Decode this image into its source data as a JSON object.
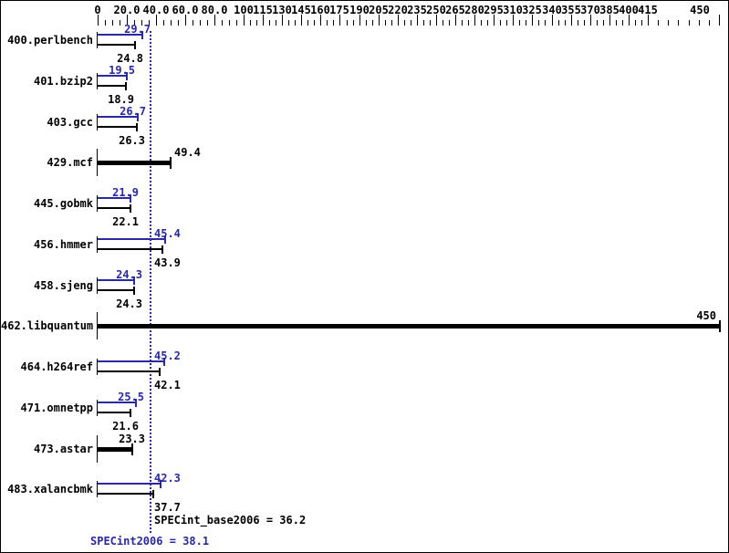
{
  "chart_data": {
    "type": "bar",
    "orientation": "horizontal",
    "title": "",
    "xlabel": "",
    "ylabel": "",
    "legend": "none",
    "grid": false,
    "colors": {
      "peak": "#2929a3",
      "base": "#000000",
      "reference_line": "#2929a3"
    },
    "axis": {
      "position": "top",
      "xlim": [
        0,
        450
      ],
      "minor_tick_step": 5,
      "major_ticks": [
        {
          "v": 0,
          "label": "0"
        },
        {
          "v": 20,
          "label": "20.0"
        },
        {
          "v": 40,
          "label": "40.0"
        },
        {
          "v": 60,
          "label": "60.0"
        },
        {
          "v": 80,
          "label": "80.0"
        },
        {
          "v": 100,
          "label": "100"
        },
        {
          "v": 115,
          "label": "115"
        },
        {
          "v": 130,
          "label": "130"
        },
        {
          "v": 145,
          "label": "145"
        },
        {
          "v": 160,
          "label": "160"
        },
        {
          "v": 175,
          "label": "175"
        },
        {
          "v": 190,
          "label": "190"
        },
        {
          "v": 205,
          "label": "205"
        },
        {
          "v": 220,
          "label": "220"
        },
        {
          "v": 235,
          "label": "235"
        },
        {
          "v": 250,
          "label": "250"
        },
        {
          "v": 265,
          "label": "265"
        },
        {
          "v": 280,
          "label": "280"
        },
        {
          "v": 295,
          "label": "295"
        },
        {
          "v": 310,
          "label": "310"
        },
        {
          "v": 325,
          "label": "325"
        },
        {
          "v": 340,
          "label": "340"
        },
        {
          "v": 355,
          "label": "355"
        },
        {
          "v": 370,
          "label": "370"
        },
        {
          "v": 385,
          "label": "385"
        },
        {
          "v": 400,
          "label": "400"
        },
        {
          "v": 415,
          "label": "415"
        },
        {
          "v": 450,
          "label": "450"
        }
      ]
    },
    "rows": [
      {
        "name": "400.perlbench",
        "style": "pair",
        "peak": 29.7,
        "peak_label": "29.7",
        "base": 24.8,
        "base_label": "24.8"
      },
      {
        "name": "401.bzip2",
        "style": "pair",
        "peak": 19.5,
        "peak_label": "19.5",
        "base": 18.9,
        "base_label": "18.9"
      },
      {
        "name": "403.gcc",
        "style": "pair",
        "peak": 26.7,
        "peak_label": "26.7",
        "base": 26.3,
        "base_label": "26.3"
      },
      {
        "name": "429.mcf",
        "style": "single",
        "value": 49.4,
        "value_label": "49.4",
        "label_pos": "right"
      },
      {
        "name": "445.gobmk",
        "style": "pair",
        "peak": 21.9,
        "peak_label": "21.9",
        "base": 22.1,
        "base_label": "22.1"
      },
      {
        "name": "456.hmmer",
        "style": "pair",
        "peak": 45.4,
        "peak_label": "45.4",
        "base": 43.9,
        "base_label": "43.9"
      },
      {
        "name": "458.sjeng",
        "style": "pair",
        "peak": 24.3,
        "peak_label": "24.3",
        "base": 24.3,
        "base_label": "24.3"
      },
      {
        "name": "462.libquantum",
        "style": "single",
        "value": 450,
        "value_label": "450",
        "label_pos": "above-end"
      },
      {
        "name": "464.h264ref",
        "style": "pair",
        "peak": 45.2,
        "peak_label": "45.2",
        "base": 42.1,
        "base_label": "42.1"
      },
      {
        "name": "471.omnetpp",
        "style": "pair",
        "peak": 25.5,
        "peak_label": "25.5",
        "base": 21.6,
        "base_label": "21.6"
      },
      {
        "name": "473.astar",
        "style": "single",
        "value": 23.3,
        "value_label": "23.3",
        "label_pos": "above"
      },
      {
        "name": "483.xalancbmk",
        "style": "pair",
        "peak": 42.3,
        "peak_label": "42.3",
        "base": 37.7,
        "base_label": "37.7"
      }
    ],
    "reference_line": {
      "value": 36.2,
      "style": "dotted"
    },
    "summary": {
      "base_metric": "SPECint_base2006",
      "base_value": 36.2,
      "base_text": "SPECint_base2006 = 36.2",
      "peak_metric": "SPECint2006",
      "peak_value": 38.1,
      "peak_text": "SPECint2006 = 38.1"
    }
  }
}
